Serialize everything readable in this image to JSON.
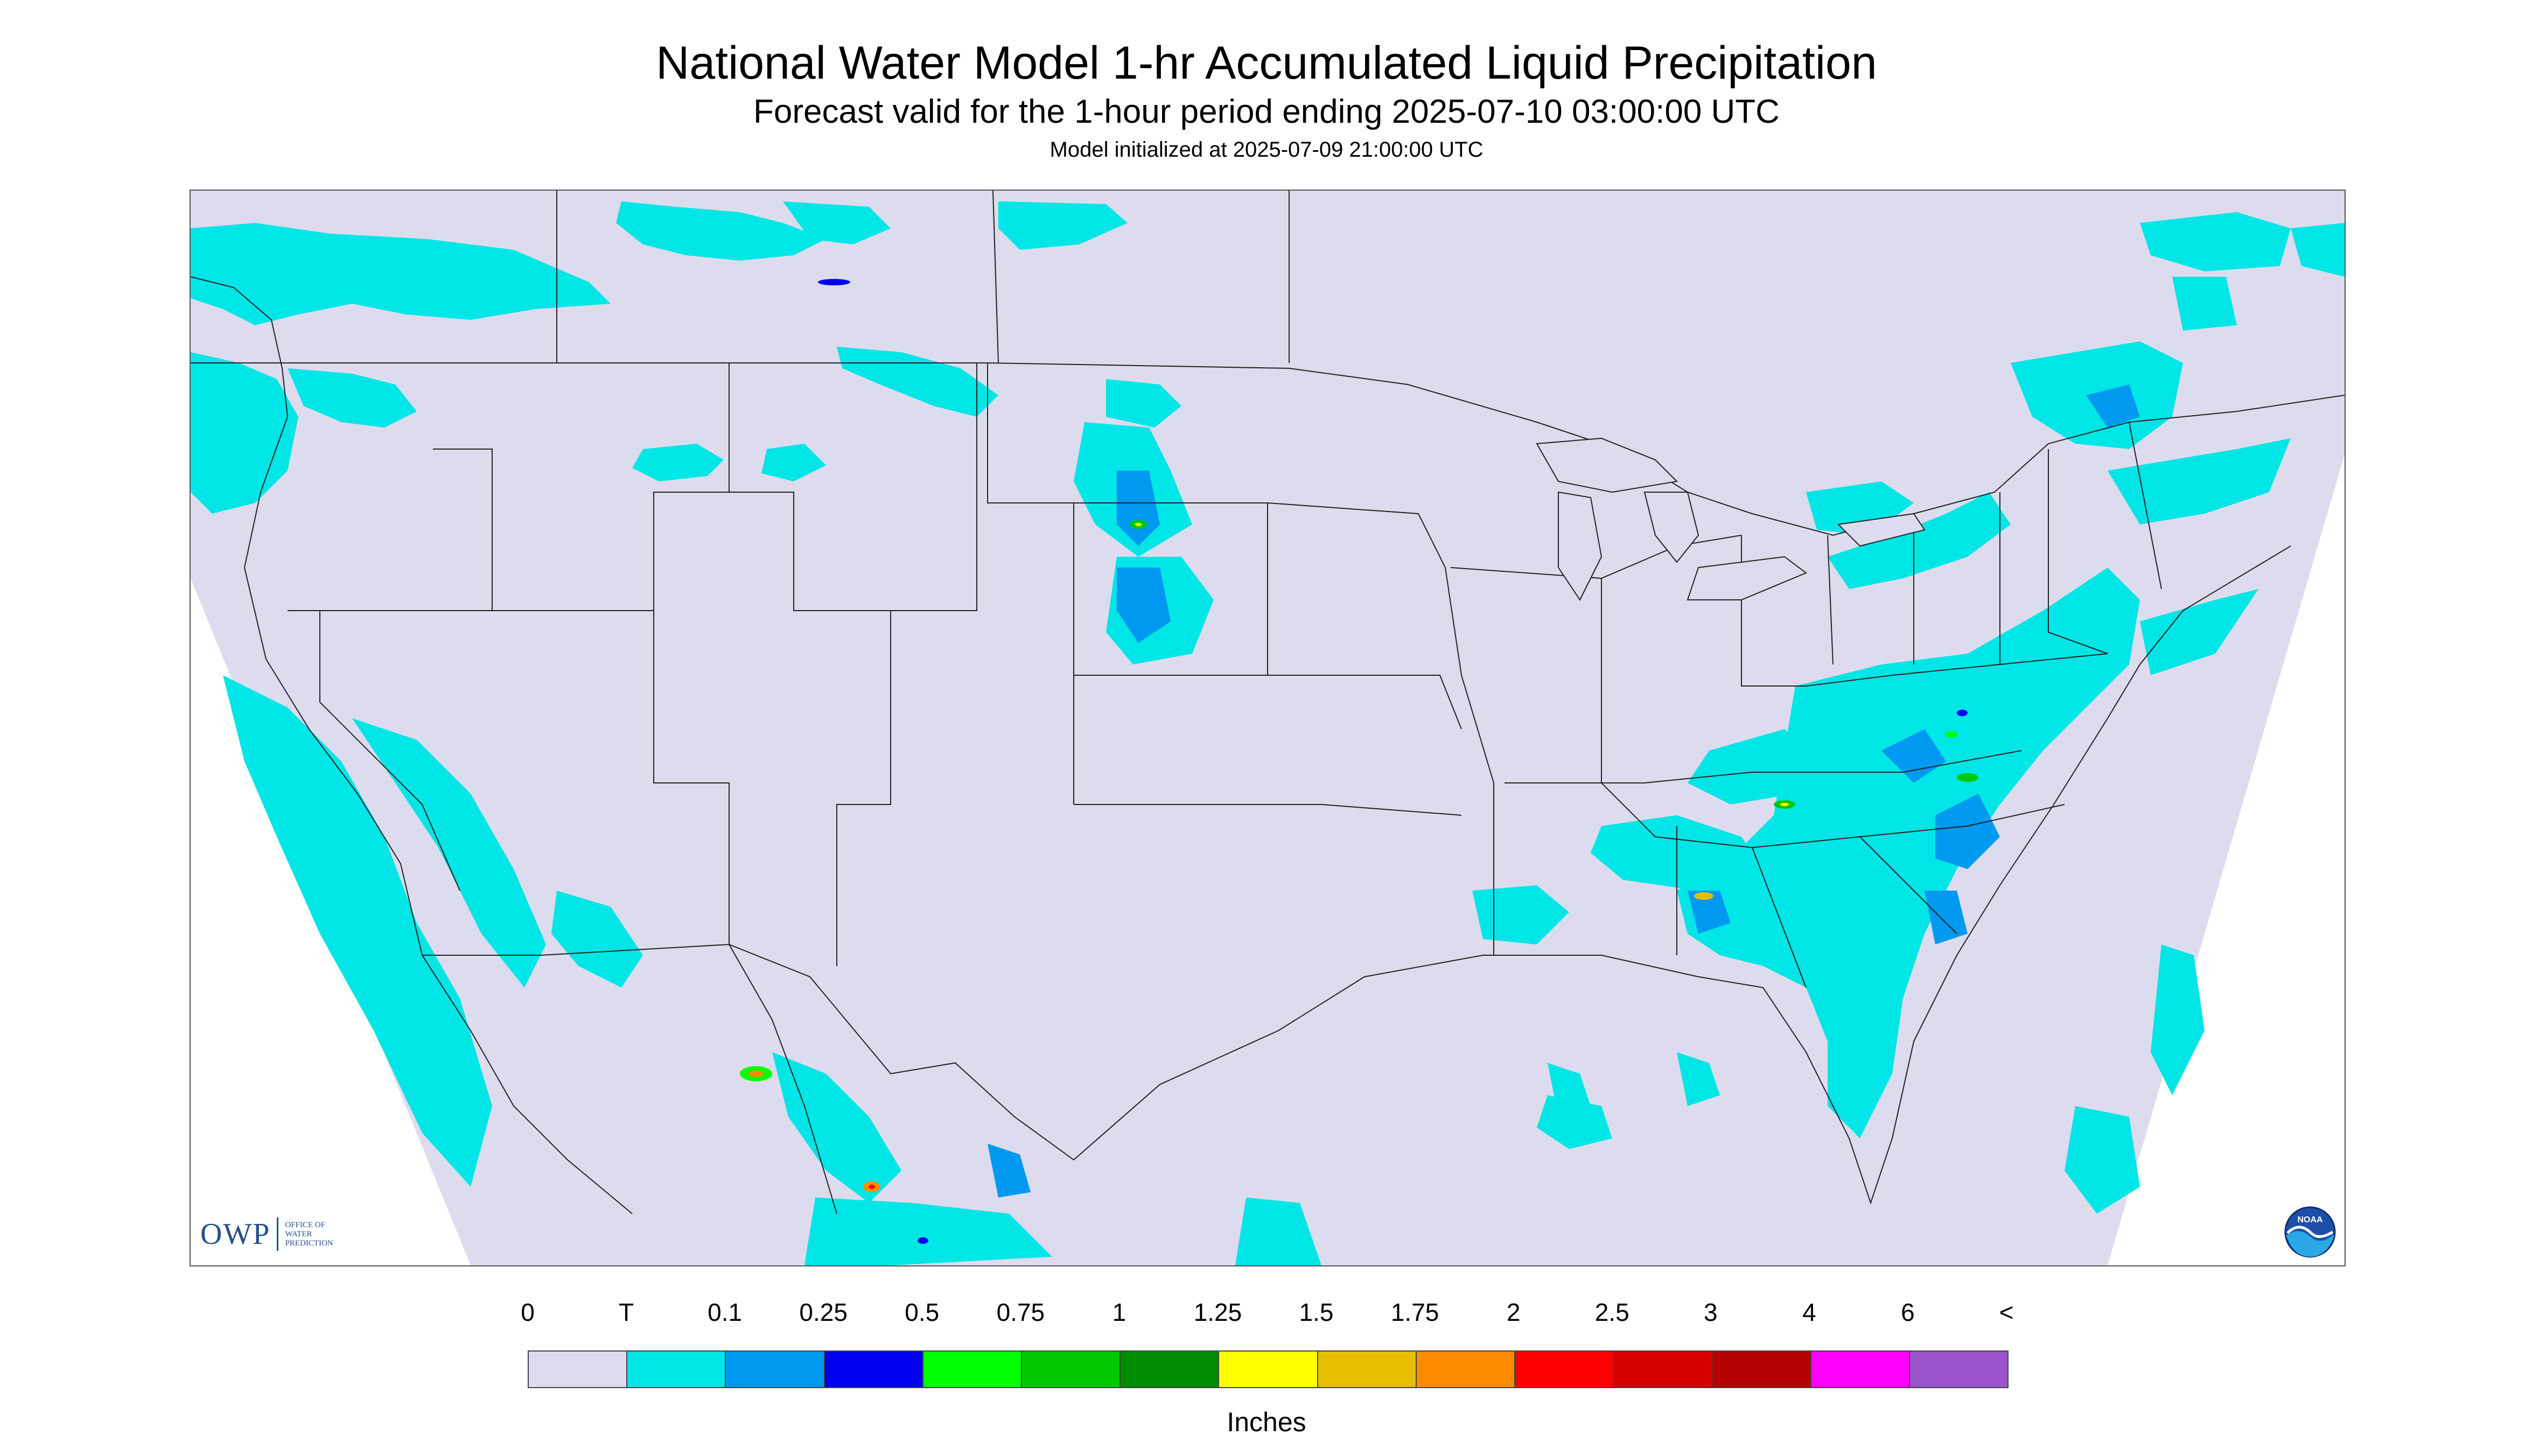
{
  "header": {
    "title": "National Water Model 1-hr Accumulated Liquid Precipitation",
    "subtitle": "Forecast valid for the 1-hour period ending 2025-07-10 03:00:00 UTC",
    "init_line": "Model initialized at 2025-07-09 21:00:00 UTC"
  },
  "map": {
    "background_color": "#dcdcee",
    "outside_color": "#ffffff",
    "logos": {
      "owp_text": "OWP",
      "owp_subtext": [
        "OFFICE OF",
        "WATER",
        "PREDICTION"
      ],
      "noaa_text": "NOAA"
    }
  },
  "legend": {
    "labels": [
      "0",
      "T",
      "0.1",
      "0.25",
      "0.5",
      "0.75",
      "1",
      "1.25",
      "1.5",
      "1.75",
      "2",
      "2.5",
      "3",
      "4",
      "6",
      "<"
    ],
    "colors": [
      "#dcdcee",
      "#00e5e5",
      "#0099f0",
      "#0000f0",
      "#00ff00",
      "#00c800",
      "#008c00",
      "#ffff00",
      "#e6bf00",
      "#ff8c00",
      "#ff0000",
      "#d60000",
      "#b40000",
      "#ff00ff",
      "#9955c9"
    ],
    "units": "Inches"
  }
}
